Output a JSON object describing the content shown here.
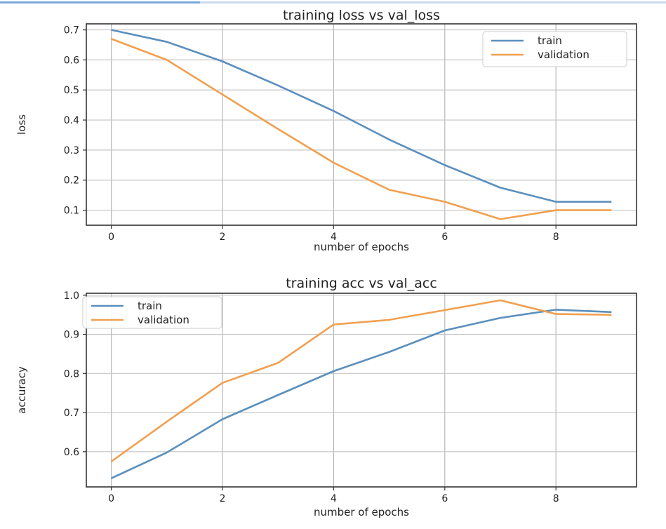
{
  "chart_data": [
    {
      "type": "line",
      "title": "training loss vs val_loss",
      "xlabel": "number of epochs",
      "ylabel": "loss",
      "xlim": [
        -0.45,
        9.45
      ],
      "ylim": [
        0.05,
        0.72
      ],
      "xticks": [
        0,
        2,
        4,
        6,
        8
      ],
      "yticks": [
        0.1,
        0.2,
        0.3,
        0.4,
        0.5,
        0.6,
        0.7
      ],
      "grid": true,
      "legend_position": "top-right",
      "x": [
        0,
        1,
        2,
        3,
        4,
        5,
        6,
        7,
        8,
        9
      ],
      "series": [
        {
          "name": "train",
          "color": "#5b8fbd",
          "values": [
            0.7,
            0.66,
            0.595,
            0.515,
            0.43,
            0.335,
            0.25,
            0.175,
            0.128,
            0.128
          ]
        },
        {
          "name": "validation",
          "color": "#f0a050",
          "values": [
            0.67,
            0.6,
            0.485,
            0.37,
            0.258,
            0.168,
            0.128,
            0.07,
            0.1,
            0.1
          ]
        }
      ]
    },
    {
      "type": "line",
      "title": "training acc vs val_acc",
      "xlabel": "number of epochs",
      "ylabel": "accuracy",
      "xlim": [
        -0.45,
        9.45
      ],
      "ylim": [
        0.51,
        1.005
      ],
      "xticks": [
        0,
        2,
        4,
        6,
        8
      ],
      "yticks": [
        0.6,
        0.7,
        0.8,
        0.9,
        1.0
      ],
      "ytick_labels": [
        "0.6",
        "0.7",
        "0.8",
        "0.9",
        "1.0"
      ],
      "grid": true,
      "legend_position": "top-left",
      "x": [
        0,
        1,
        2,
        3,
        4,
        5,
        6,
        7,
        8,
        9
      ],
      "series": [
        {
          "name": "train",
          "color": "#5b8fbd",
          "values": [
            0.532,
            0.598,
            0.683,
            0.745,
            0.806,
            0.855,
            0.91,
            0.942,
            0.963,
            0.957
          ]
        },
        {
          "name": "validation",
          "color": "#f0a050",
          "values": [
            0.575,
            0.677,
            0.776,
            0.827,
            0.925,
            0.937,
            0.962,
            0.987,
            0.952,
            0.95
          ]
        }
      ]
    }
  ]
}
